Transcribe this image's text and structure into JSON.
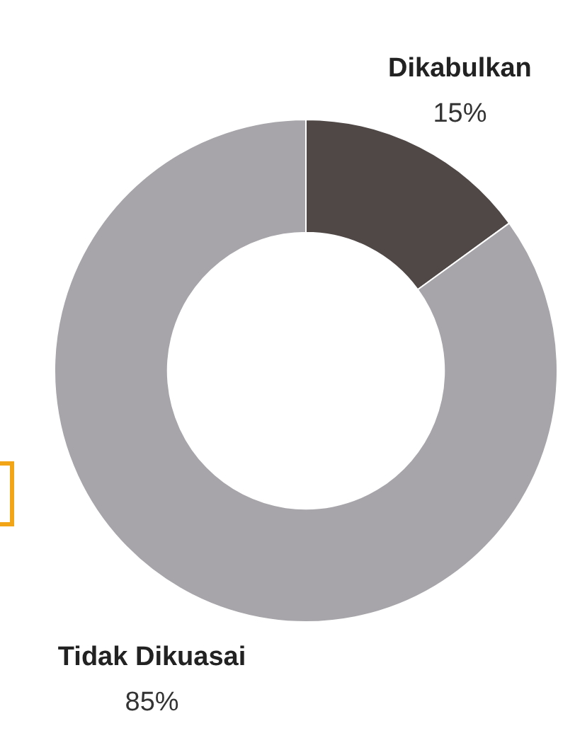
{
  "chart_data": {
    "type": "donut",
    "categories": [
      "Dikabulkan",
      "Tidak Dikuasai"
    ],
    "values": [
      15,
      85
    ],
    "colors": [
      "#4f4846",
      "#a7a5a9"
    ],
    "legend": false,
    "value_labels": [
      "15%",
      "85%"
    ]
  }
}
